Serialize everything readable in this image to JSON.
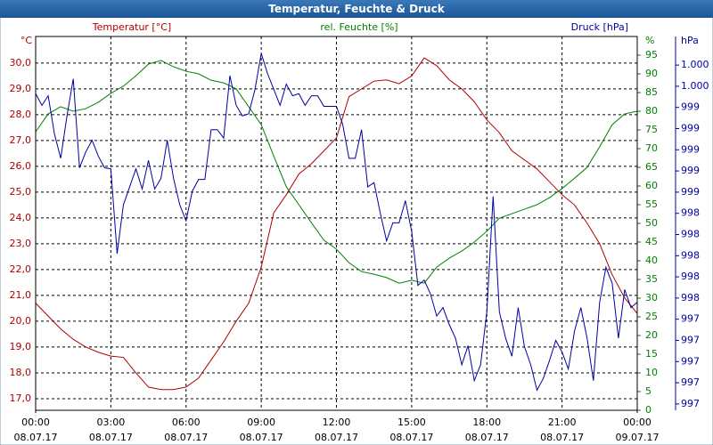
{
  "chart_data": {
    "type": "line",
    "title": "Temperatur, Feuchte & Druck",
    "ylabel": "°C",
    "y2label": "%",
    "y3label": "hPa",
    "xlim": [
      0,
      24
    ],
    "xticks": [
      {
        "value": 0,
        "label": "00:00"
      },
      {
        "value": 3,
        "label": "03:00"
      },
      {
        "value": 6,
        "label": "06:00"
      },
      {
        "value": 9,
        "label": "09:00"
      },
      {
        "value": 12,
        "label": "12:00"
      },
      {
        "value": 15,
        "label": "15:00"
      },
      {
        "value": 18,
        "label": "18:00"
      },
      {
        "value": 21,
        "label": "21:00"
      },
      {
        "value": 24,
        "label": "00:00"
      }
    ],
    "xtick_dates": [
      "08.07.17",
      "08.07.17",
      "08.07.17",
      "08.07.17",
      "08.07.17",
      "08.07.17",
      "08.07.17",
      "08.07.17",
      "09.07.17"
    ],
    "ylim": [
      16.55,
      31.03
    ],
    "yticks": [
      {
        "value": 17,
        "label": "17,0"
      },
      {
        "value": 18,
        "label": "18,0"
      },
      {
        "value": 19,
        "label": "19,0"
      },
      {
        "value": 20,
        "label": "20,0"
      },
      {
        "value": 21,
        "label": "21,0"
      },
      {
        "value": 22,
        "label": "22,0"
      },
      {
        "value": 23,
        "label": "23,0"
      },
      {
        "value": 24,
        "label": "24,0"
      },
      {
        "value": 25,
        "label": "25,0"
      },
      {
        "value": 26,
        "label": "26,0"
      },
      {
        "value": 27,
        "label": "27,0"
      },
      {
        "value": 28,
        "label": "28,0"
      },
      {
        "value": 29,
        "label": "29,0"
      },
      {
        "value": 30,
        "label": "30,0"
      }
    ],
    "y2lim": [
      0,
      100
    ],
    "y2ticks": [
      0,
      5,
      10,
      15,
      20,
      25,
      30,
      35,
      40,
      45,
      50,
      55,
      60,
      65,
      70,
      75,
      80,
      85,
      90,
      95
    ],
    "y3lim": [
      996.54,
      1000.07
    ],
    "y3ticks": [
      {
        "value": 999.8,
        "label": "1.000"
      },
      {
        "value": 999.6,
        "label": "1.000"
      },
      {
        "value": 999.4,
        "label": "999"
      },
      {
        "value": 999.2,
        "label": "999"
      },
      {
        "value": 999.0,
        "label": "999"
      },
      {
        "value": 998.8,
        "label": "999"
      },
      {
        "value": 998.6,
        "label": "999"
      },
      {
        "value": 998.4,
        "label": "998"
      },
      {
        "value": 998.2,
        "label": "998"
      },
      {
        "value": 998.0,
        "label": "998"
      },
      {
        "value": 997.8,
        "label": "998"
      },
      {
        "value": 997.6,
        "label": "998"
      },
      {
        "value": 997.4,
        "label": "997"
      },
      {
        "value": 997.2,
        "label": "997"
      },
      {
        "value": 997.0,
        "label": "997"
      },
      {
        "value": 996.8,
        "label": "997"
      },
      {
        "value": 996.6,
        "label": "997"
      }
    ],
    "grid": true,
    "x": [
      0,
      0.5,
      1,
      1.5,
      2,
      2.5,
      3,
      3.5,
      4,
      4.5,
      5,
      5.5,
      6,
      6.5,
      7,
      7.5,
      8,
      8.5,
      9,
      9.5,
      10,
      10.5,
      11,
      11.5,
      12,
      12.5,
      13,
      13.5,
      14,
      14.5,
      15,
      15.5,
      16,
      16.5,
      17,
      17.5,
      18,
      18.5,
      19,
      19.5,
      20,
      20.5,
      21,
      21.5,
      22,
      22.5,
      23,
      23.5,
      24
    ],
    "series": [
      {
        "name": "Temperatur [°C]",
        "color": "#b00000",
        "axis": "y",
        "values": [
          20.7,
          20.2,
          19.7,
          19.3,
          19.0,
          18.8,
          18.65,
          18.6,
          18.0,
          17.45,
          17.35,
          17.35,
          17.45,
          17.8,
          18.5,
          19.2,
          20.0,
          20.7,
          22.1,
          24.2,
          24.9,
          25.7,
          26.1,
          26.6,
          27.1,
          28.7,
          29.0,
          29.3,
          29.35,
          29.2,
          29.5,
          30.2,
          29.9,
          29.35,
          29.0,
          28.5,
          27.8,
          27.3,
          26.6,
          26.25,
          25.9,
          25.4,
          24.9,
          24.5,
          23.8,
          23.0,
          21.8,
          20.9,
          20.3
        ]
      },
      {
        "name": "rel. Feuchte [%]",
        "color": "#008000",
        "axis": "y2",
        "values": [
          74.5,
          79.3,
          81.2,
          80,
          80.7,
          82.4,
          84.8,
          86.7,
          89.5,
          92.6,
          93.6,
          91.9,
          90.7,
          90,
          88.3,
          87.6,
          86,
          81.2,
          76.4,
          68,
          59.8,
          55,
          50.2,
          45.5,
          43.1,
          39.5,
          37.1,
          36.4,
          35.5,
          34,
          34.8,
          34,
          38.3,
          40.7,
          42.6,
          45,
          47.9,
          51.4,
          52.6,
          53.8,
          55,
          56.9,
          59.3,
          62.1,
          65,
          70.5,
          76.4,
          79.3,
          80
        ]
      },
      {
        "name": "Druck [hPa]",
        "color": "#0000a0",
        "axis": "y3",
        "x": [
          0,
          0.25,
          0.5,
          0.75,
          1,
          1.25,
          1.5,
          1.75,
          2,
          2.25,
          2.5,
          2.75,
          3,
          3.25,
          3.5,
          3.75,
          4,
          4.25,
          4.5,
          4.75,
          5,
          5.25,
          5.5,
          5.75,
          6,
          6.25,
          6.5,
          6.75,
          7,
          7.25,
          7.5,
          7.75,
          8,
          8.25,
          8.5,
          8.75,
          9,
          9.25,
          9.5,
          9.75,
          10,
          10.25,
          10.5,
          10.75,
          11,
          11.25,
          11.5,
          11.75,
          12,
          12.25,
          12.5,
          12.75,
          13,
          13.25,
          13.5,
          13.75,
          14,
          14.25,
          14.5,
          14.75,
          15,
          15.25,
          15.5,
          15.75,
          16,
          16.25,
          16.5,
          16.75,
          17,
          17.25,
          17.5,
          17.75,
          18,
          18.25,
          18.5,
          18.75,
          19,
          19.25,
          19.5,
          19.75,
          20,
          20.25,
          20.5,
          20.75,
          21,
          21.25,
          21.5,
          21.75,
          22,
          22.25,
          22.5,
          22.75,
          23,
          23.25,
          23.5,
          23.75,
          24
        ],
        "values": [
          999.53,
          999.42,
          999.51,
          999.15,
          998.92,
          999.32,
          999.67,
          998.83,
          998.98,
          999.09,
          998.94,
          998.83,
          998.82,
          998.02,
          998.48,
          998.65,
          998.82,
          998.63,
          998.9,
          998.63,
          998.73,
          999.09,
          998.73,
          998.48,
          998.33,
          998.61,
          998.72,
          998.72,
          999.19,
          999.19,
          999.11,
          999.7,
          999.42,
          999.32,
          999.34,
          999.57,
          999.91,
          999.72,
          999.57,
          999.42,
          999.62,
          999.51,
          999.53,
          999.42,
          999.51,
          999.51,
          999.41,
          999.41,
          999.41,
          999.24,
          998.92,
          998.92,
          999.19,
          998.65,
          998.69,
          998.4,
          998.14,
          998.31,
          998.31,
          998.52,
          998.23,
          997.72,
          997.77,
          997.64,
          997.43,
          997.51,
          997.35,
          997.22,
          996.97,
          997.15,
          996.82,
          996.97,
          997.47,
          998.56,
          997.47,
          997.22,
          997.05,
          997.51,
          997.14,
          996.97,
          996.73,
          996.84,
          997.01,
          997.2,
          997.09,
          996.93,
          997.29,
          997.51,
          997.22,
          996.82,
          997.56,
          997.89,
          997.74,
          997.22,
          997.68,
          997.51,
          997.56
        ]
      }
    ]
  }
}
